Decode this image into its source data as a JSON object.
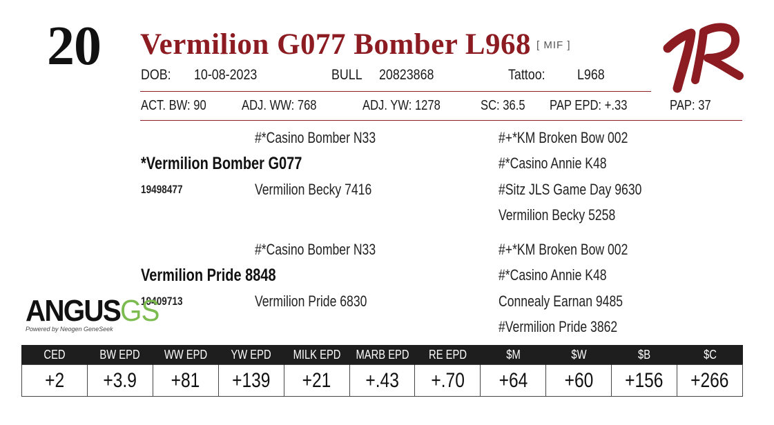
{
  "lot": {
    "number": "20"
  },
  "animal": {
    "name": "Vermilion G077 Bomber L968",
    "tag": "[ MIF ]"
  },
  "details": {
    "dob_label": "DOB:",
    "dob": "10-08-2023",
    "sex_label": "BULL",
    "registration": "20823868",
    "tattoo_label": "Tattoo:",
    "tattoo": "L968"
  },
  "stats": {
    "act_bw": "ACT. BW: 90",
    "adj_ww": "ADJ. WW: 768",
    "adj_yw": "ADJ. YW: 1278",
    "sc": "SC: 36.5",
    "pap_epd": "PAP EPD: +.33",
    "pap": "PAP: 37"
  },
  "pedigree": {
    "sire": {
      "name": "*Vermilion Bomber G077",
      "reg": "19498477",
      "sire": "#*Casino Bomber N33",
      "dam": "Vermilion Becky 7416",
      "ggp": [
        "#+*KM Broken Bow 002",
        "#*Casino Annie K48",
        "#Sitz JLS Game Day 9630",
        "Vermilion Becky 5258"
      ]
    },
    "dam": {
      "name": "Vermilion Pride 8848",
      "reg": "19409713",
      "sire": "#*Casino Bomber N33",
      "dam": "Vermilion Pride 6830",
      "ggp": [
        "#+*KM Broken Bow 002",
        "#*Casino Annie K48",
        "Connealy Earnan 9485",
        "#Vermilion Pride 3862"
      ]
    }
  },
  "logo": {
    "main": "ANGUS",
    "suffix": "GS",
    "sub": "Powered by Neogen GeneSeek"
  },
  "brand_color": "#8c1c22",
  "epds": {
    "headers": [
      "CED",
      "BW EPD",
      "WW EPD",
      "YW EPD",
      "MILK EPD",
      "MARB EPD",
      "RE EPD",
      "$M",
      "$W",
      "$B",
      "$C"
    ],
    "values": [
      "+2",
      "+3.9",
      "+81",
      "+139",
      "+21",
      "+.43",
      "+.70",
      "+64",
      "+60",
      "+156",
      "+266"
    ]
  }
}
